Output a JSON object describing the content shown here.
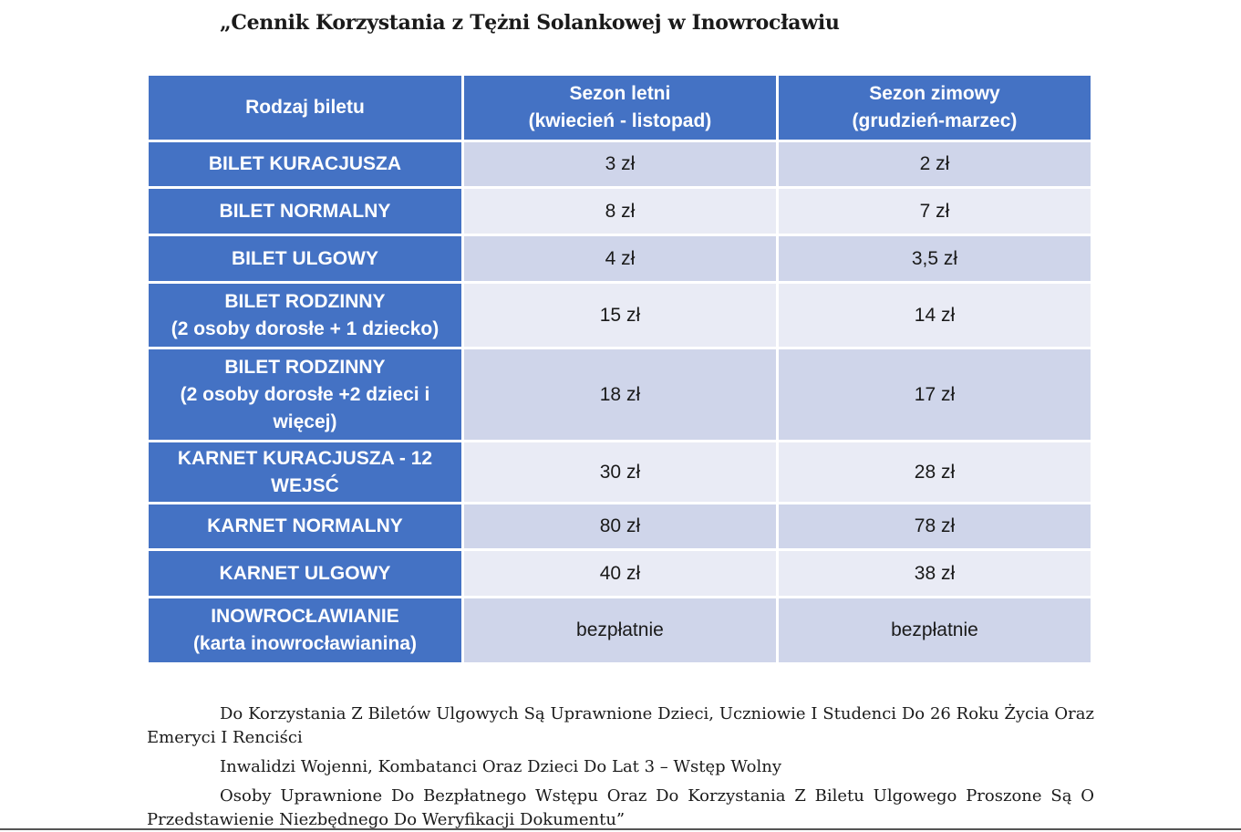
{
  "title": "„Cennik Korzystania z Tężni Solankowej w Inowrocławiu",
  "table": {
    "headers": [
      "Rodzaj biletu",
      "Sezon letni\n(kwiecień - listopad)",
      "Sezon zimowy\n(grudzień-marzec)"
    ],
    "rows": [
      {
        "type": "BILET KURACJUSZA",
        "summer": "3 zł",
        "winter": "2 zł"
      },
      {
        "type": "BILET NORMALNY",
        "summer": "8 zł",
        "winter": "7 zł"
      },
      {
        "type": "BILET ULGOWY",
        "summer": "4 zł",
        "winter": "3,5 zł"
      },
      {
        "type": "BILET RODZINNY\n(2 osoby dorosłe + 1 dziecko)",
        "summer": "15 zł",
        "winter": "14 zł"
      },
      {
        "type": "BILET RODZINNY\n(2 osoby dorosłe +2 dzieci i\nwięcej)",
        "summer": "18 zł",
        "winter": "17 zł"
      },
      {
        "type": "KARNET KURACJUSZA - 12\nWEJSĆ",
        "summer": "30 zł",
        "winter": "28 zł"
      },
      {
        "type": "KARNET NORMALNY",
        "summer": "80 zł",
        "winter": "78 zł"
      },
      {
        "type": "KARNET ULGOWY",
        "summer": "40 zł",
        "winter": "38 zł"
      },
      {
        "type": "INOWROCŁAWIANIE\n(karta inowrocławianina)",
        "summer": "bezpłatnie",
        "winter": "bezpłatnie"
      }
    ]
  },
  "notes": [
    "Do Korzystania Z Biletów Ulgowych Są Uprawnione Dzieci, Uczniowie I Studenci Do 26 Roku Życia Oraz Emeryci I Renciści",
    "Inwalidzi Wojenni, Kombatanci Oraz Dzieci Do Lat 3 – Wstęp Wolny",
    "Osoby Uprawnione Do Bezpłatnego Wstępu Oraz Do Korzystania Z Biletu Ulgowego Proszone Są O Przedstawienie Niezbędnego Do Weryfikacji Dokumentu”"
  ],
  "colors": {
    "header_blue": "#4472c4",
    "row_dark": "#cfd5ea",
    "row_light": "#e9ebf5"
  }
}
